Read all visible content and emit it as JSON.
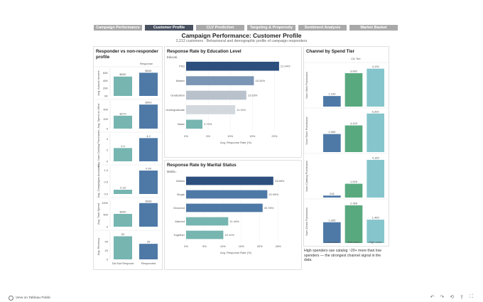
{
  "tabs": [
    "Campaign Performance",
    "Customer Profile",
    "CLV Prediction",
    "Targeting & Propensity",
    "Sentiment Analysis",
    "Market Basket"
  ],
  "active_tab": 1,
  "title": "Campaign Performance: Customer Profile",
  "subtitle": "2,212 customers · Behavioural and demographic profile of campaign responders",
  "panels": {
    "responder": {
      "title": "Responder vs non-responder profile"
    },
    "education": {
      "title": "Response Rate by Education Level",
      "filter": "Educati.."
    },
    "marital": {
      "title": "Response Rate by Marital Status",
      "filter": "Marita.."
    },
    "channel": {
      "title": "Channel by Spend Tier"
    }
  },
  "insight": "High spenders use catalog ~20+ more than low spenders — the strongest channel signal in the data.",
  "footer": {
    "label": "View on Tableau Public"
  },
  "colors": {
    "teal": "#76b5b0",
    "blue": "#4e79a7",
    "green": "#59a97f",
    "lightteal": "#86c5cc",
    "navy": "#2c4f7e",
    "steel": "#7b95b5",
    "grey": "#b8c1cc",
    "lgrey": "#d2d8de"
  },
  "chart_data": [
    {
      "type": "bar",
      "title": "Responder vs non-responder profile",
      "column_header": "Response",
      "categories": [
        "Did Not Respond",
        "Responded"
      ],
      "rows": [
        {
          "label": "Avg. Annual Income",
          "values": [
            50626,
            60600
          ],
          "display": [
            "$50K",
            "$60K"
          ],
          "ticks": [
            {
              "v": 60000,
              "t": "60K"
            },
            {
              "v": 40000,
              "t": "40K"
            },
            {
              "v": 20000,
              "t": "20K"
            },
            {
              "v": 0,
              "t": "0K"
            }
          ],
          "ymax": 65000
        },
        {
          "label": "Avg. Spent on Wine",
          "values": [
            270,
            503
          ],
          "display": [
            "$270",
            "$503"
          ],
          "ticks": [
            {
              "v": 400,
              "t": "400"
            },
            {
              "v": 200,
              "t": "200"
            },
            {
              "v": 0,
              "t": "0"
            }
          ],
          "ymax": 520
        },
        {
          "label": "Avg. Num Catalog Purchases",
          "values": [
            2.4,
            4.2
          ],
          "display": [
            "2.4",
            "4.2"
          ],
          "ticks": [
            {
              "v": 4,
              "t": "4"
            },
            {
              "v": 2,
              "t": "2"
            },
            {
              "v": 0,
              "t": "0"
            }
          ],
          "ymax": 4.5
        },
        {
          "label": "Avg. Campaigns Accepted",
          "values": [
            0.18,
            0.99
          ],
          "display": [
            "0.18",
            "0.99"
          ],
          "ticks": [
            {
              "v": 1,
              "t": "1.0"
            },
            {
              "v": 0.5,
              "t": "0.5"
            },
            {
              "v": 0,
              "t": "0.0"
            }
          ],
          "ymax": 1.05
        },
        {
          "label": "Avg. Total Spend",
          "values": [
            540,
            996
          ],
          "display": [
            "$540",
            "$996"
          ],
          "ticks": [
            {
              "v": 1000,
              "t": "1000"
            },
            {
              "v": 500,
              "t": "500"
            },
            {
              "v": 0,
              "t": "0"
            }
          ],
          "ymax": 1050
        },
        {
          "label": "Avg. Recency",
          "values": [
            52,
            35
          ],
          "display": [
            "52",
            "35"
          ],
          "ticks": [
            {
              "v": 40,
              "t": "40"
            },
            {
              "v": 20,
              "t": "20"
            },
            {
              "v": 0,
              "t": "0"
            }
          ],
          "ymax": 56
        }
      ]
    },
    {
      "type": "bar",
      "title": "Response Rate by Education Level",
      "categories": [
        "PhD",
        "Master",
        "Graduation",
        "Undergraduate",
        "Basic"
      ],
      "values": [
        21.04,
        15.34,
        13.63,
        11.11,
        3.7
      ],
      "labels": [
        "21.04%",
        "15.34%",
        "13.63%",
        "11.11%",
        "3.70%"
      ],
      "xlabel": "Avg. Response Rate (%)",
      "xticks": [
        "0%",
        "5%",
        "10%",
        "15%",
        "20%"
      ],
      "xlim": [
        0,
        22.5
      ]
    },
    {
      "type": "bar",
      "title": "Response Rate by Marital Status",
      "categories": [
        "Widow",
        "Single",
        "Divorced",
        "Married",
        "Together"
      ],
      "values": [
        23.68,
        22.05,
        20.78,
        11.44,
        10.11
      ],
      "labels": [
        "23.68%",
        "22.05%",
        "20.78%",
        "11.44%",
        "10.11%"
      ],
      "xlabel": "Avg. Response Rate (%)",
      "xticks": [
        "0%",
        "5%",
        "10%",
        "15%",
        "20%",
        "25%"
      ],
      "xlim": [
        0,
        27
      ]
    },
    {
      "type": "bar",
      "title": "Channel by Spend Tier",
      "column_header": "Clv Tier",
      "categories": [
        "Low value",
        "Mid value",
        "High value"
      ],
      "rows": [
        {
          "label": "Num Web Purchases",
          "values": [
            1.169,
            3.692,
            4.192
          ],
          "labels": [
            "1.169",
            "3,692",
            "4,192"
          ],
          "ymax": 4.4
        },
        {
          "label": "Num Store Purchases",
          "values": [
            2.989,
            4.423,
            6.392
          ],
          "labels": [
            "2,989",
            "4,423",
            "6,392"
          ],
          "ymax": 6.6
        },
        {
          "label": "Num Catalog Purchases",
          "values": [
            0.216,
            1.526,
            4.169
          ],
          "labels": [
            "216",
            "1,526",
            "4,169"
          ],
          "ymax": 4.4
        },
        {
          "label": "Num Deals Purchases",
          "values": [
            1.305,
            2.368,
            1.469
          ],
          "labels": [
            "1,305",
            "2,368",
            "1,469"
          ],
          "ymax": 2.5
        }
      ]
    }
  ]
}
